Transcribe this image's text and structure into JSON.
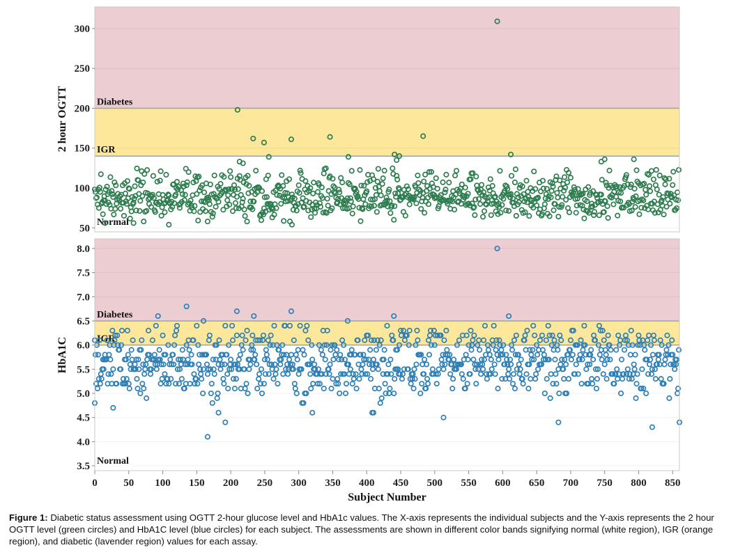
{
  "chart_data": [
    {
      "type": "scatter",
      "ylabel": "2 hour OGTT",
      "xlim": [
        0,
        860
      ],
      "ylim": [
        45,
        327
      ],
      "yticks": [
        50,
        100,
        150,
        200,
        250,
        300
      ],
      "color": "#2e7d4f",
      "bands": [
        {
          "label": "Normal",
          "from": 45,
          "to": 140,
          "color": "#ffffff"
        },
        {
          "label": "IGR",
          "from": 140,
          "to": 200,
          "color": "#fde79a"
        },
        {
          "label": "Diabetes",
          "from": 200,
          "to": 327,
          "color": "#ebcdd2"
        }
      ],
      "thresholds": [
        140,
        200
      ],
      "highlighted_points": [
        {
          "x": 592,
          "y": 309
        },
        {
          "x": 210,
          "y": 198
        },
        {
          "x": 233,
          "y": 162
        },
        {
          "x": 249,
          "y": 157
        },
        {
          "x": 289,
          "y": 161
        },
        {
          "x": 346,
          "y": 164
        },
        {
          "x": 483,
          "y": 165
        },
        {
          "x": 441,
          "y": 142
        },
        {
          "x": 448,
          "y": 140
        },
        {
          "x": 612,
          "y": 142
        },
        {
          "x": 256,
          "y": 139
        },
        {
          "x": 373,
          "y": 139
        },
        {
          "x": 213,
          "y": 133
        },
        {
          "x": 218,
          "y": 131
        },
        {
          "x": 444,
          "y": 135
        },
        {
          "x": 750,
          "y": 136
        },
        {
          "x": 793,
          "y": 136
        },
        {
          "x": 745,
          "y": 133
        },
        {
          "x": 290,
          "y": 54
        },
        {
          "x": 15,
          "y": 56
        },
        {
          "x": 57,
          "y": 56
        },
        {
          "x": 109,
          "y": 54
        },
        {
          "x": 166,
          "y": 58
        },
        {
          "x": 261,
          "y": 63
        }
      ]
    },
    {
      "type": "scatter",
      "xlabel": "Subject Number",
      "ylabel": "HbA1C",
      "xlim": [
        0,
        860
      ],
      "ylim": [
        3.4,
        8.2
      ],
      "xticks": [
        0,
        50,
        100,
        150,
        200,
        250,
        300,
        350,
        400,
        450,
        500,
        550,
        600,
        650,
        700,
        750,
        800,
        850
      ],
      "yticks": [
        "3.5",
        "4.0",
        "4.5",
        "5.0",
        "5.5",
        "6.0",
        "6.5",
        "7.0",
        "7.5",
        "8.0"
      ],
      "color": "#2f7fb5",
      "bands": [
        {
          "label": "Normal",
          "from": 3.4,
          "to": 6.0,
          "color": "#ffffff"
        },
        {
          "label": "IGR",
          "from": 6.0,
          "to": 6.5,
          "color": "#fde79a"
        },
        {
          "label": "Diabetes",
          "from": 6.5,
          "to": 8.2,
          "color": "#ebcdd2"
        }
      ],
      "thresholds": [
        6.0,
        6.5
      ],
      "highlighted_points": [
        {
          "x": 592,
          "y": 8.0
        },
        {
          "x": 135,
          "y": 6.8
        },
        {
          "x": 209,
          "y": 6.7
        },
        {
          "x": 289,
          "y": 6.7
        },
        {
          "x": 93,
          "y": 6.6
        },
        {
          "x": 234,
          "y": 6.6
        },
        {
          "x": 440,
          "y": 6.6
        },
        {
          "x": 609,
          "y": 6.6
        },
        {
          "x": 372,
          "y": 6.5
        },
        {
          "x": 160,
          "y": 6.5
        },
        {
          "x": 166,
          "y": 4.1
        },
        {
          "x": 820,
          "y": 4.3
        },
        {
          "x": 860,
          "y": 4.4
        },
        {
          "x": 682,
          "y": 4.4
        },
        {
          "x": 513,
          "y": 4.5
        },
        {
          "x": 320,
          "y": 4.6
        },
        {
          "x": 182,
          "y": 4.6
        },
        {
          "x": 408,
          "y": 4.6
        },
        {
          "x": 410,
          "y": 4.6
        },
        {
          "x": 192,
          "y": 4.4
        },
        {
          "x": 27,
          "y": 4.7
        },
        {
          "x": 0,
          "y": 4.8
        }
      ]
    }
  ],
  "caption": {
    "label": "Figure 1:",
    "text": "Diabetic status assessment using OGTT 2-hour glucose level and HbA1c values. The X-axis represents the individual subjects and the Y-axis represents the 2 hour OGTT level (green circles) and HbA1C level (blue circles) for each subject. The assessments are shown in different color bands signifying normal (white region), IGR (orange region), and diabetic (lavender region) values for each assay."
  }
}
